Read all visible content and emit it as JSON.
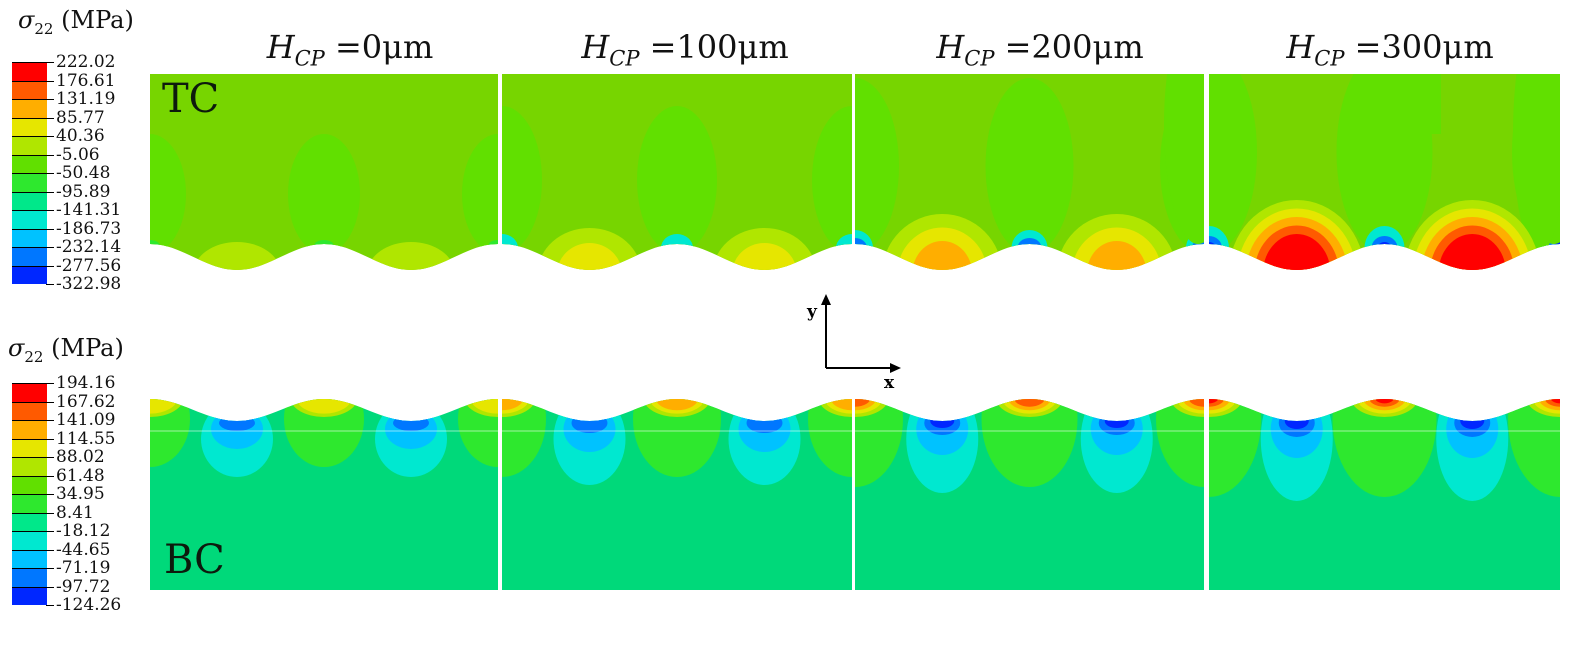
{
  "colors": {
    "scale12": [
      "#ff0000",
      "#ff5a00",
      "#ffae00",
      "#e6e600",
      "#b0e600",
      "#61e000",
      "#2ee82e",
      "#00e88a",
      "#00e8d0",
      "#00c2ff",
      "#0077ff",
      "#0027ff"
    ],
    "tc_bg": "#77d500",
    "bc_bg": "#00d97a"
  },
  "legend_top": {
    "title_symbol": "σ",
    "title_sub": "22",
    "title_unit": "(MPa)",
    "values": [
      "222.02",
      "176.61",
      "131.19",
      "85.77",
      "40.36",
      "-5.06",
      "-50.48",
      "-95.89",
      "-141.31",
      "-186.73",
      "-232.14",
      "-277.56",
      "-322.98"
    ]
  },
  "legend_bottom": {
    "title_symbol": "σ",
    "title_sub": "22",
    "title_unit": "(MPa)",
    "values": [
      "194.16",
      "167.62",
      "141.09",
      "114.55",
      "88.02",
      "61.48",
      "34.95",
      "8.41",
      "-18.12",
      "-44.65",
      "-71.19",
      "-97.72",
      "-124.26"
    ]
  },
  "columns": [
    {
      "symbol": "H",
      "sub": "CP",
      "value": "=0μm"
    },
    {
      "symbol": "H",
      "sub": "CP",
      "value": "=100μm"
    },
    {
      "symbol": "H",
      "sub": "CP",
      "value": "=200μm"
    },
    {
      "symbol": "H",
      "sub": "CP",
      "value": "=300μm"
    }
  ],
  "rows": {
    "top_label": "TC",
    "bottom_label": "BC"
  },
  "axes": {
    "y": "y",
    "x": "x"
  }
}
